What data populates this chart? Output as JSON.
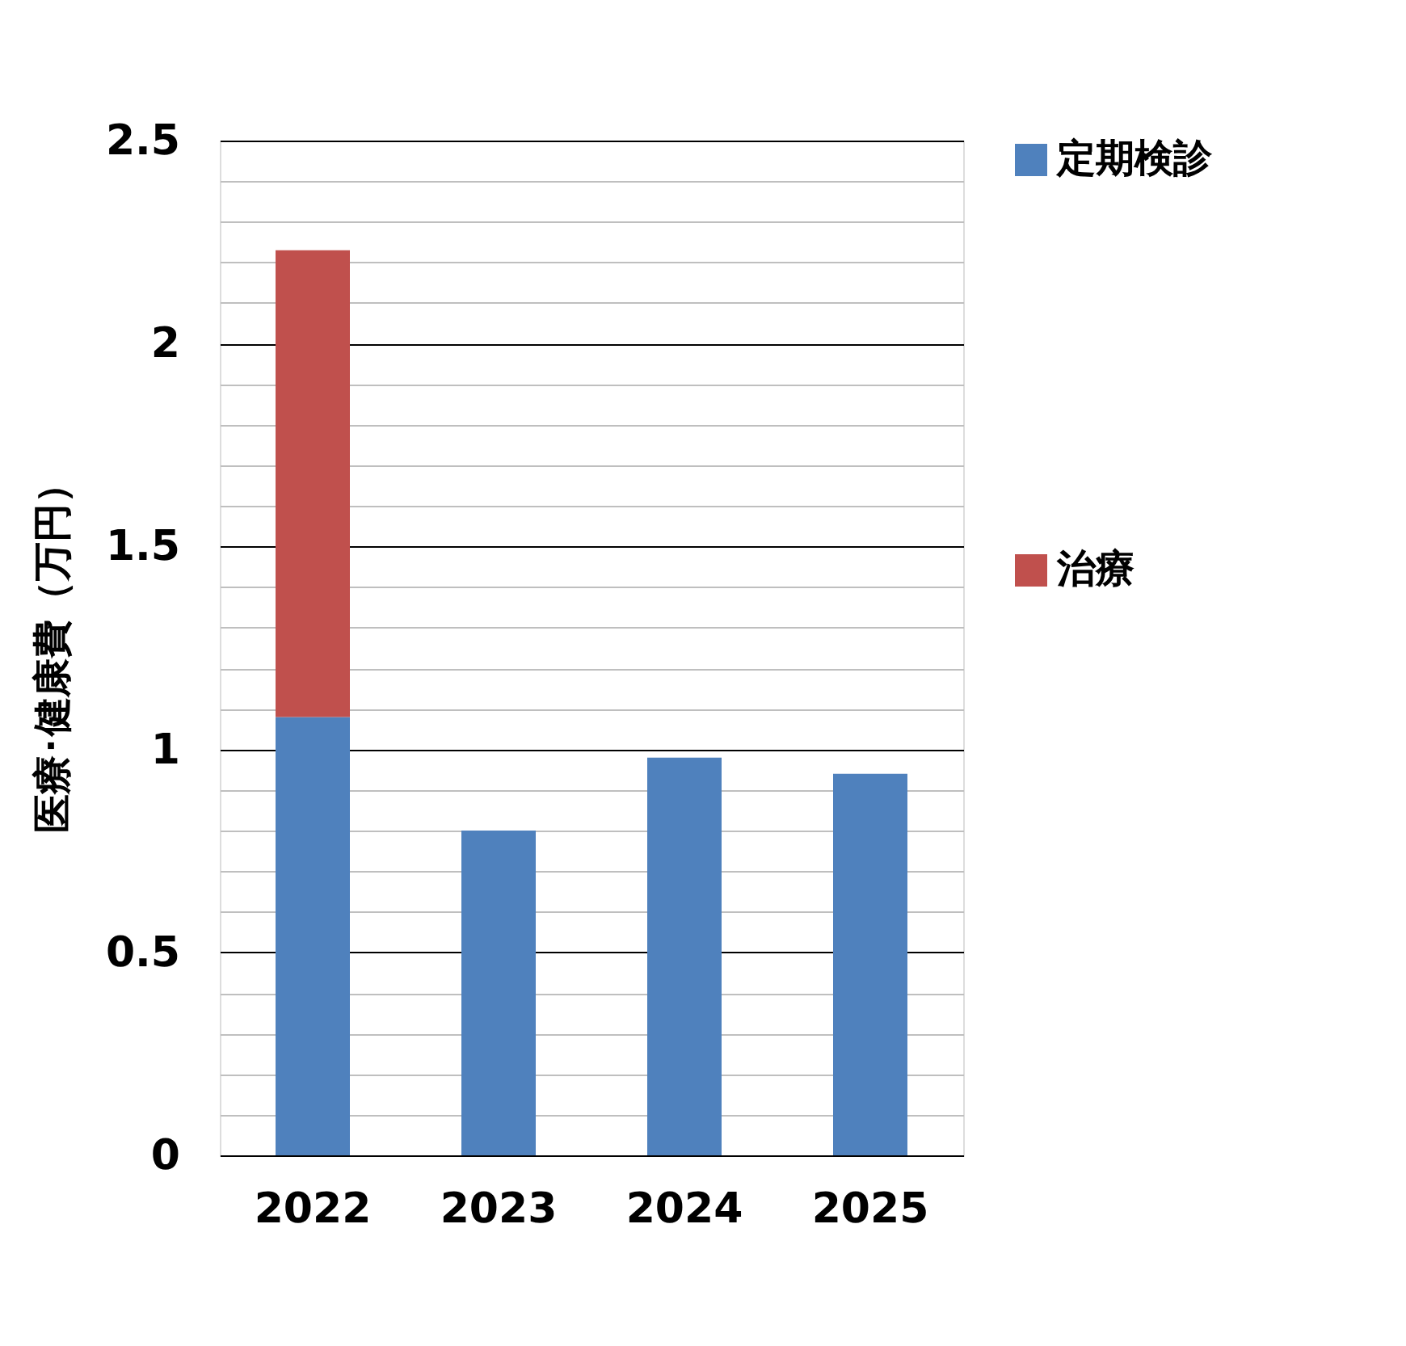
{
  "chart_data": {
    "type": "bar",
    "ylabel": "医療･健康費（万円）",
    "categories": [
      "2022",
      "2023",
      "2024",
      "2025"
    ],
    "stacked": true,
    "series": [
      {
        "name": "定期検診",
        "color": "#4f81bd",
        "values": [
          1.08,
          0.8,
          0.98,
          0.94
        ]
      },
      {
        "name": "治療",
        "color": "#c0504d",
        "values": [
          1.15,
          null,
          null,
          null
        ]
      }
    ],
    "ylim": [
      0,
      2.5
    ],
    "yticks": [
      0,
      {
        "value": 0.1,
        "label": null
      },
      {
        "value": 0.2,
        "label": null
      },
      {
        "value": 0.3,
        "label": null
      },
      {
        "value": 0.4,
        "label": null
      },
      0.5,
      {
        "value": 0.6,
        "label": null
      },
      {
        "value": 0.7,
        "label": null
      },
      {
        "value": 0.8,
        "label": null
      },
      {
        "value": 0.9,
        "label": null
      },
      1,
      {
        "value": 1.1,
        "label": null
      },
      {
        "value": 1.2,
        "label": null
      },
      {
        "value": 1.3,
        "label": null
      },
      {
        "value": 1.4,
        "label": null
      },
      1.5,
      {
        "value": 1.6,
        "label": null
      },
      {
        "value": 1.7,
        "label": null
      },
      {
        "value": 1.8,
        "label": null
      },
      {
        "value": 1.9,
        "label": null
      },
      2,
      {
        "value": 2.1,
        "label": null
      },
      {
        "value": 2.2,
        "label": null
      },
      {
        "value": 2.3,
        "label": null
      },
      {
        "value": 2.4,
        "label": null
      },
      2.5
    ],
    "grid": true,
    "legend": "right"
  }
}
